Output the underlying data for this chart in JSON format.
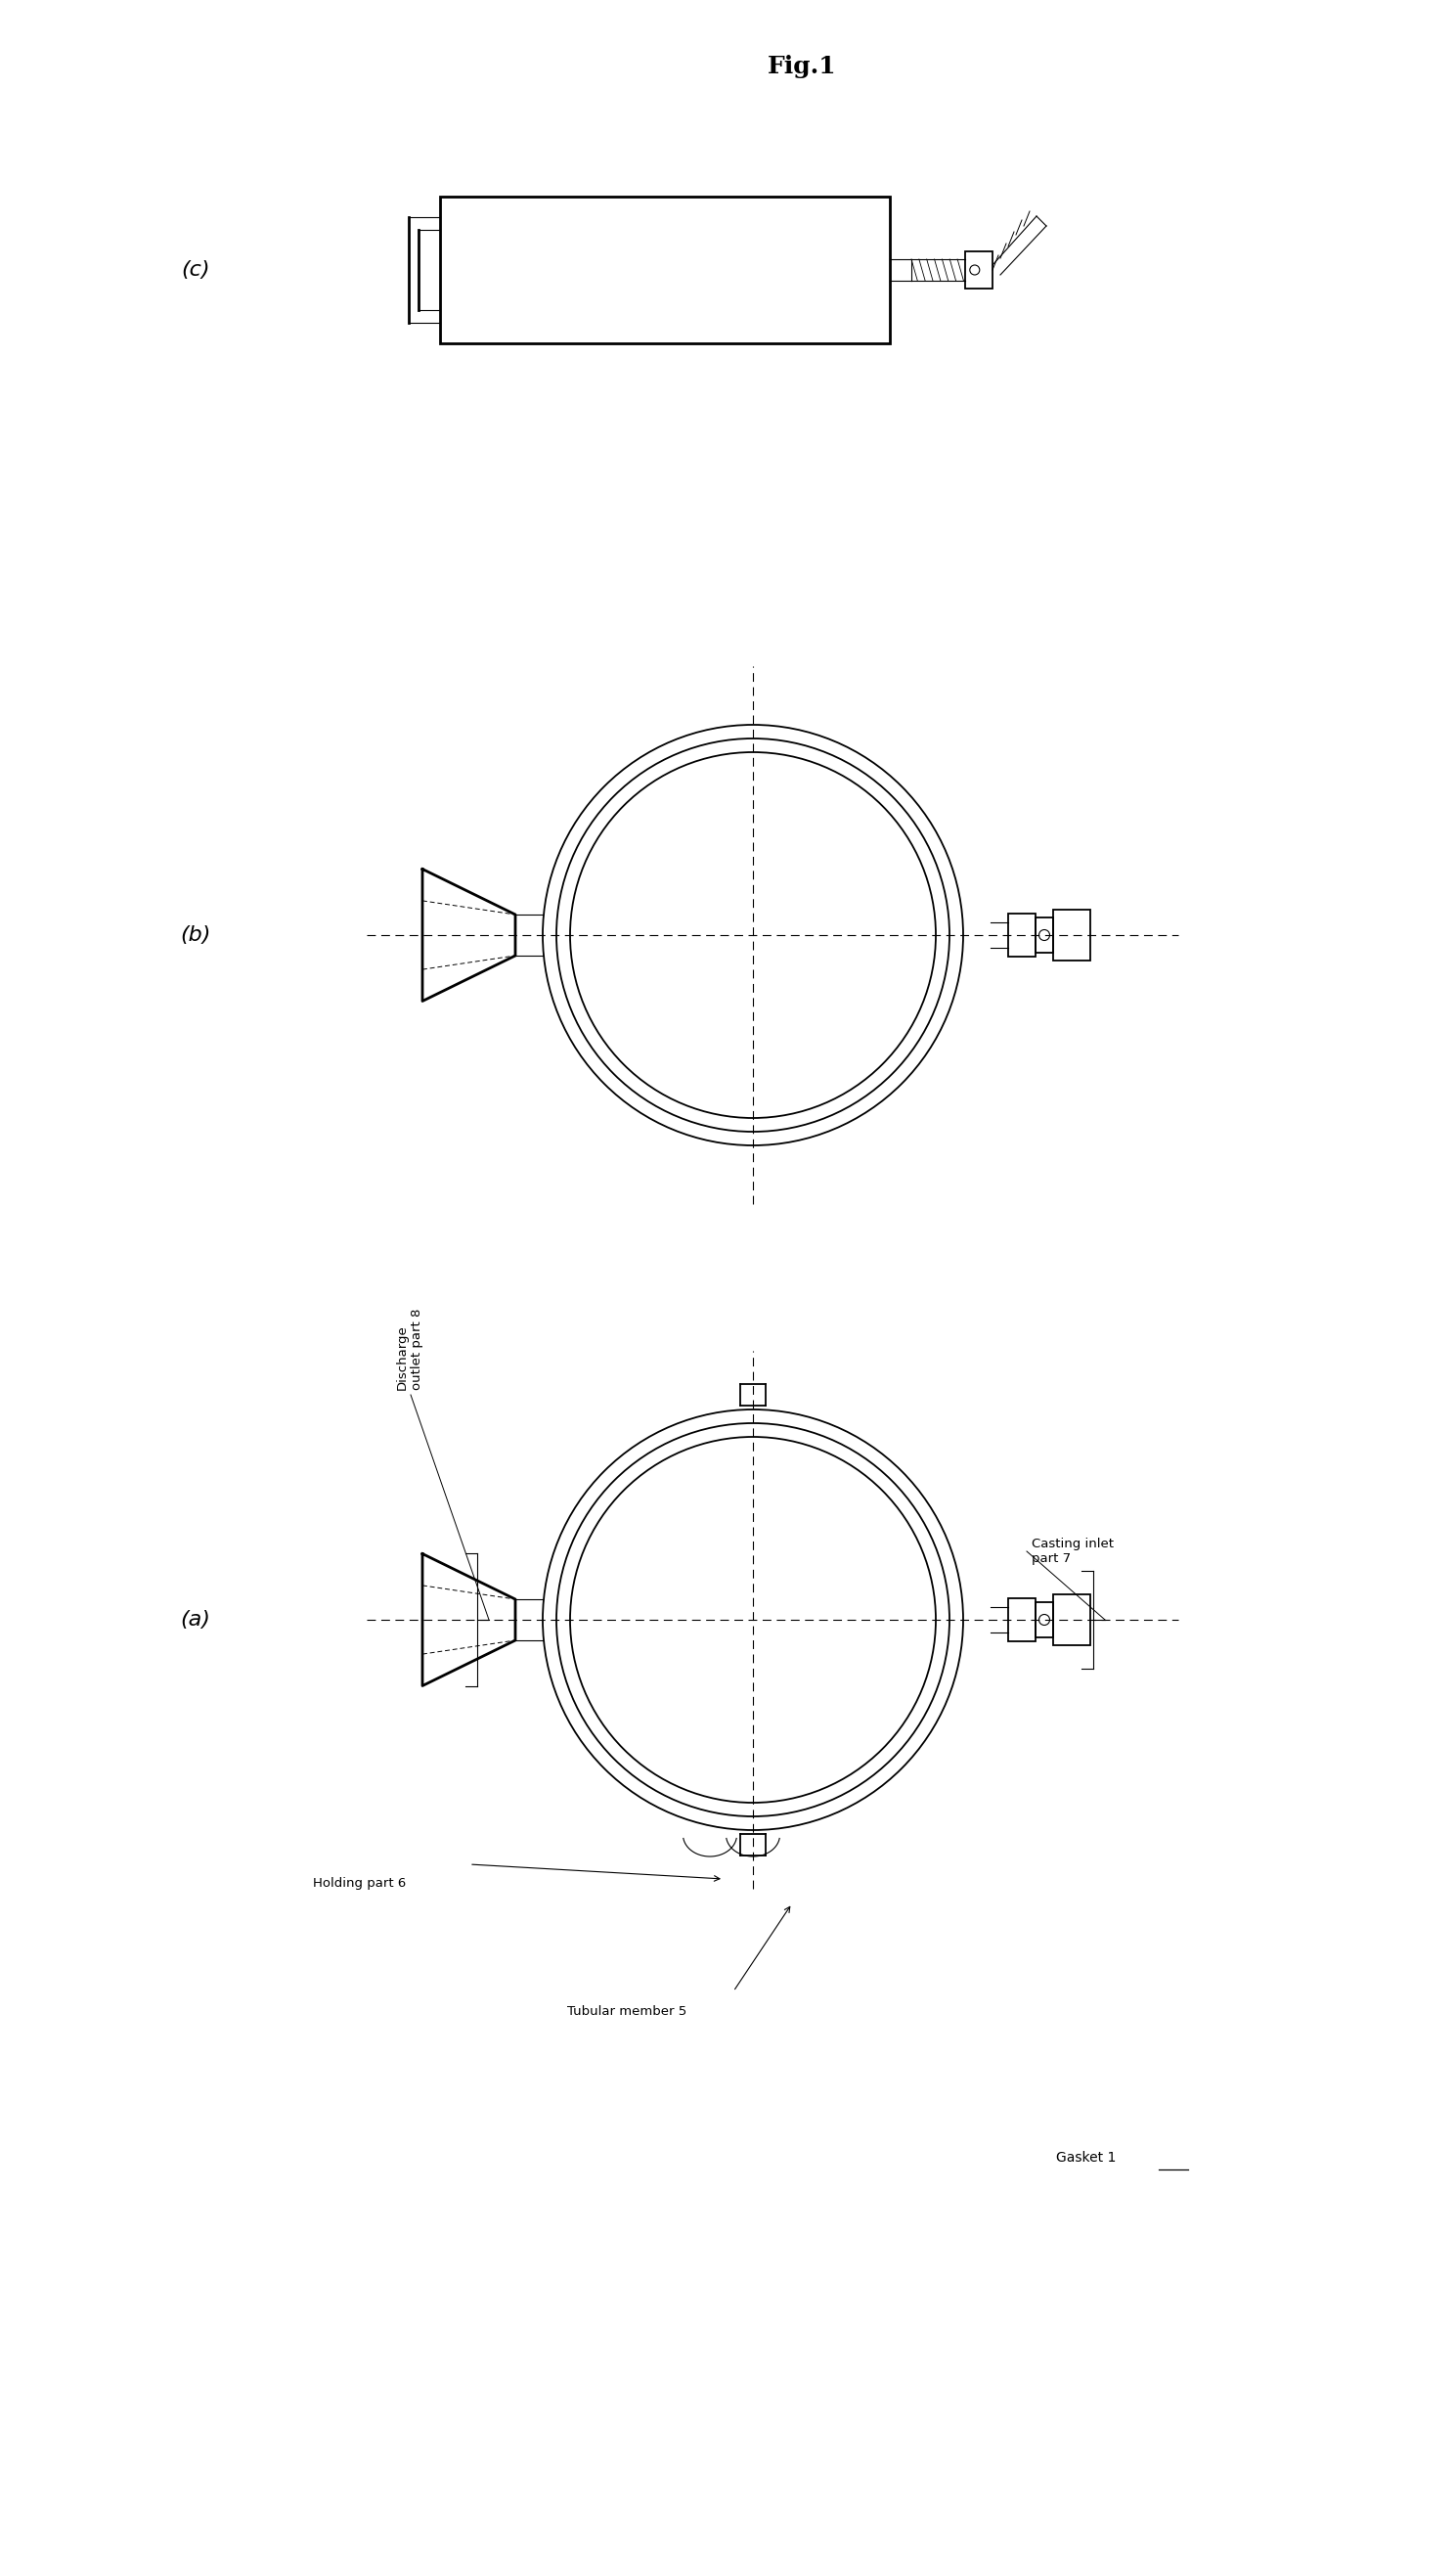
{
  "title": "Fig.1",
  "title_fontsize": 18,
  "title_fontweight": "bold",
  "bg_color": "#ffffff",
  "line_color": "#000000",
  "label_a": "(a)",
  "label_b": "(b)",
  "label_c": "(c)",
  "annotation_discharge": "Discharge\noutlet part 8",
  "annotation_casting": "Casting inlet\npart 7",
  "annotation_holding": "Holding part 6",
  "annotation_tubular": "Tubular member 5",
  "annotation_gasket": "Gasket 1"
}
